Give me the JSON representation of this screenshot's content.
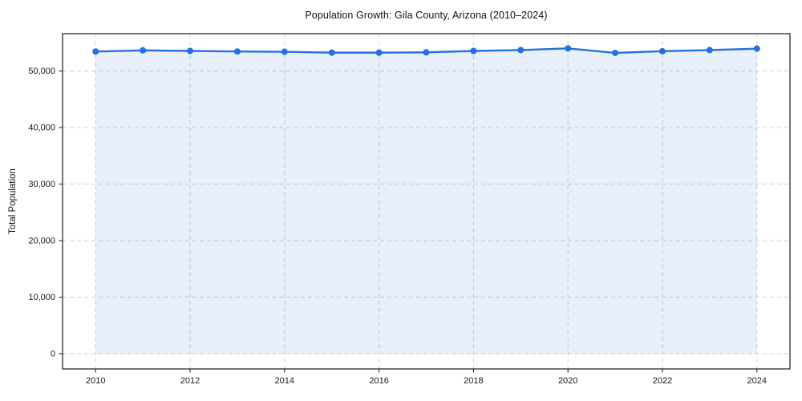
{
  "chart_data": {
    "type": "line",
    "title": "Population Growth: Gila County, Arizona (2010–2024)",
    "xlabel": "",
    "ylabel": "Total Population",
    "x": [
      2010,
      2011,
      2012,
      2013,
      2014,
      2015,
      2016,
      2017,
      2018,
      2019,
      2020,
      2021,
      2022,
      2023,
      2024
    ],
    "values": [
      53450,
      53650,
      53550,
      53450,
      53400,
      53250,
      53250,
      53300,
      53550,
      53700,
      54000,
      53200,
      53500,
      53700,
      53950
    ],
    "xlim": [
      2009.3,
      2024.7
    ],
    "ylim": [
      -2700,
      56600
    ],
    "xticks": {
      "values": [
        2010,
        2012,
        2014,
        2016,
        2018,
        2020,
        2022,
        2024
      ],
      "labels": [
        "2010",
        "2012",
        "2014",
        "2016",
        "2018",
        "2020",
        "2022",
        "2024"
      ]
    },
    "yticks": {
      "values": [
        0,
        10000,
        20000,
        30000,
        40000,
        50000
      ],
      "labels": [
        "0",
        "10,000",
        "20,000",
        "30,000",
        "40,000",
        "50,000"
      ]
    },
    "grid": true,
    "grid_style": "dashed",
    "legend": "none",
    "area_fill": true,
    "marker": "circle",
    "colors": {
      "line": "#2470df",
      "marker": "#2470df",
      "fill": "rgba(36, 112, 223, 0.10)",
      "grid": "#cccccc",
      "axis": "#1a1a1a",
      "tick_text": "#1a1a1a",
      "background": "#ffffff"
    }
  }
}
